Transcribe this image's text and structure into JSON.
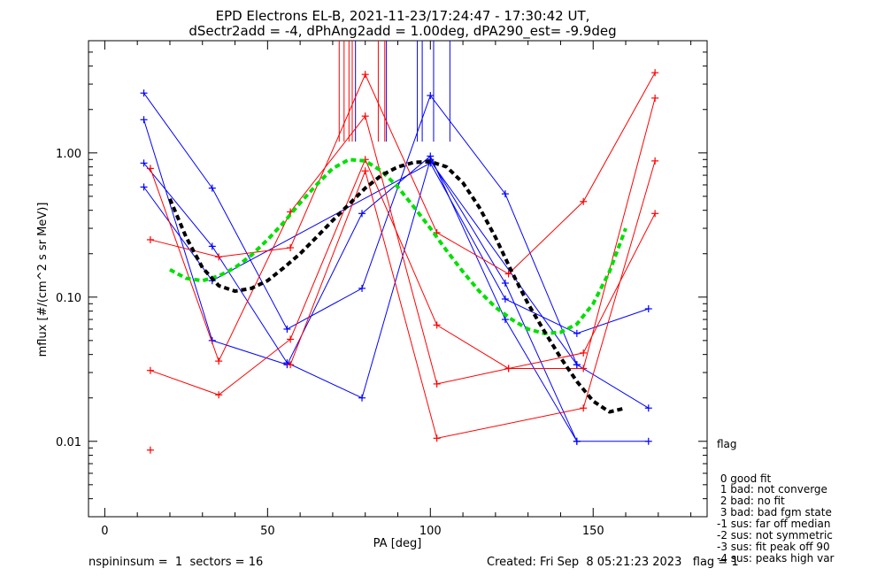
{
  "chart_data": {
    "type": "line",
    "title": "EPD Electrons EL-B, 2021-11-23/17:24:47 - 17:30:42 UT,",
    "subtitle": "dSectr2add = -4, dPhAng2add = 1.00deg, dPA290_est=  -9.9deg",
    "xlabel": "PA [deg]",
    "ylabel": "mflux [#/(cm^2 s sr MeV)]",
    "xlim": [
      -5,
      185
    ],
    "ylim": [
      0.003,
      6.0
    ],
    "yscale": "log",
    "xticks": [
      0,
      50,
      100,
      150
    ],
    "yticks": [
      {
        "value": 0.01,
        "label": "0.01"
      },
      {
        "value": 0.1,
        "label": "0.10"
      },
      {
        "value": 1.0,
        "label": "1.00"
      }
    ],
    "series": [
      {
        "color": "#0000ff",
        "x": [
          12,
          33,
          56,
          79,
          100,
          123,
          145
        ],
        "y": [
          2.6,
          0.57,
          0.06,
          0.115,
          2.5,
          0.52,
          0.034
        ]
      },
      {
        "color": "#0000ff",
        "x": [
          12,
          33,
          56,
          79,
          100,
          123,
          145
        ],
        "y": [
          1.7,
          0.05,
          0.034,
          0.38,
          0.95,
          0.07,
          0.01
        ]
      },
      {
        "color": "#0000ff",
        "x": [
          12,
          33,
          56,
          79,
          100,
          123,
          145,
          167
        ],
        "y": [
          0.85,
          0.225,
          0.035,
          0.02,
          0.9,
          0.125,
          0.01,
          0.01
        ]
      },
      {
        "color": "#0000ff",
        "x": [
          12,
          33,
          100,
          123,
          145,
          167
        ],
        "y": [
          0.58,
          0.13,
          0.85,
          0.097,
          0.056,
          0.083
        ]
      },
      {
        "color": "#0000ff",
        "x": [
          100,
          145,
          167
        ],
        "y": [
          0.88,
          0.034,
          0.017
        ]
      },
      {
        "color": "#ff0000",
        "x": [
          14,
          35,
          57,
          80,
          102,
          124,
          147,
          169
        ],
        "y": [
          0.25,
          0.19,
          0.22,
          3.5,
          0.28,
          0.145,
          0.46,
          3.6
        ]
      },
      {
        "color": "#ff0000",
        "x": [
          14,
          35,
          57,
          80,
          102,
          124,
          147,
          169
        ],
        "y": [
          0.78,
          0.036,
          0.39,
          1.8,
          0.025,
          0.032,
          0.032,
          2.4
        ]
      },
      {
        "color": "#ff0000",
        "x": [
          14,
          35,
          57,
          80,
          102,
          124,
          147,
          169
        ],
        "y": [
          0.031,
          0.021,
          0.051,
          0.9,
          0.064,
          0.032,
          0.041,
          0.38
        ]
      },
      {
        "color": "#ff0000",
        "x": [
          57,
          80,
          102,
          147,
          169
        ],
        "y": [
          0.034,
          0.75,
          0.0105,
          0.017,
          0.88
        ]
      },
      {
        "color": "#ff0000",
        "x": [
          14
        ],
        "y": [
          0.0087
        ]
      }
    ],
    "fits": [
      {
        "color": "#00e000",
        "style": "dashed",
        "x": [
          20,
          25,
          30,
          35,
          40,
          45,
          50,
          55,
          60,
          65,
          70,
          75,
          80,
          85,
          90,
          95,
          100,
          105,
          110,
          115,
          120,
          125,
          130,
          135,
          140,
          145,
          150,
          155,
          160
        ],
        "y": [
          0.155,
          0.135,
          0.13,
          0.14,
          0.16,
          0.195,
          0.25,
          0.33,
          0.45,
          0.6,
          0.78,
          0.9,
          0.88,
          0.75,
          0.58,
          0.42,
          0.3,
          0.21,
          0.15,
          0.11,
          0.085,
          0.07,
          0.06,
          0.056,
          0.057,
          0.065,
          0.09,
          0.15,
          0.3
        ]
      },
      {
        "color": "#000000",
        "style": "dashed",
        "x": [
          20,
          25,
          30,
          35,
          40,
          45,
          50,
          55,
          60,
          65,
          70,
          75,
          80,
          85,
          90,
          95,
          100,
          105,
          110,
          115,
          120,
          125,
          130,
          135,
          140,
          145,
          150,
          155,
          160
        ],
        "y": [
          0.48,
          0.26,
          0.16,
          0.12,
          0.11,
          0.115,
          0.13,
          0.16,
          0.2,
          0.26,
          0.34,
          0.44,
          0.57,
          0.7,
          0.8,
          0.86,
          0.87,
          0.8,
          0.62,
          0.42,
          0.26,
          0.15,
          0.09,
          0.058,
          0.038,
          0.026,
          0.019,
          0.016,
          0.017
        ]
      }
    ],
    "markers": [
      {
        "color": "#ff0000",
        "x": [
          72,
          73.5,
          75,
          76,
          84,
          86
        ]
      },
      {
        "color": "#0000ff",
        "x": [
          77,
          86.5,
          96,
          97.5,
          101,
          106
        ]
      }
    ]
  },
  "legend": {
    "title": "flag",
    "items": [
      " 0 good fit",
      " 1 bad: not converge",
      " 2 bad: no fit",
      " 3 bad: bad fgm state",
      "-1 sus: far off median",
      "-2 sus: not symmetric",
      "-3 sus: fit peak off 90",
      "-4 sus: peaks high var"
    ]
  },
  "footer": {
    "left": "nspininsum =  1  sectors = 16",
    "right": "Created: Fri Sep  8 05:21:23 2023   flag = 1"
  }
}
